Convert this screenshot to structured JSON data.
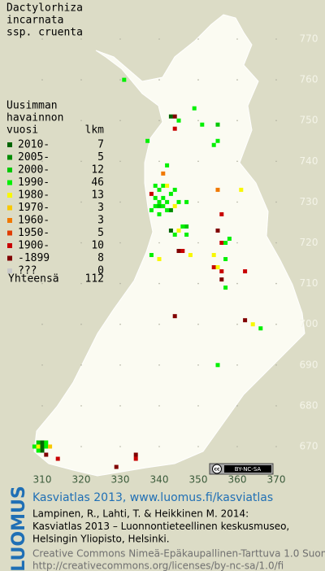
{
  "title": [
    "Dactylorhiza",
    "incarnata",
    "ssp. cruenta"
  ],
  "legend": {
    "heading": [
      "Uusimman",
      "havainnon",
      "vuosi"
    ],
    "count_heading": "lkm",
    "rows": [
      {
        "label": "2010-",
        "color": "#006400",
        "count": 7
      },
      {
        "label": "2005-",
        "color": "#008c00",
        "count": 5
      },
      {
        "label": "2000-",
        "color": "#00c800",
        "count": 12
      },
      {
        "label": "1990-",
        "color": "#00f000",
        "count": 46
      },
      {
        "label": "1980-",
        "color": "#f8f800",
        "count": 13
      },
      {
        "label": "1970-",
        "color": "#f8c800",
        "count": 3
      },
      {
        "label": "1960-",
        "color": "#f07800",
        "count": 3
      },
      {
        "label": "1950-",
        "color": "#e03c00",
        "count": 5
      },
      {
        "label": "1900-",
        "color": "#c80000",
        "count": 10
      },
      {
        "label": "-1899",
        "color": "#800000",
        "count": 8
      },
      {
        "label": "???",
        "color": "#c8c8c8",
        "count": 0
      }
    ],
    "total": {
      "label": "Yhteensä",
      "count": 112
    }
  },
  "map": {
    "xticks": [
      310,
      320,
      330,
      340,
      350,
      360,
      370
    ],
    "yticks": [
      770,
      760,
      750,
      740,
      730,
      720,
      710,
      700,
      690,
      680,
      670
    ],
    "points": [
      [
        331,
        760,
        3
      ],
      [
        343,
        751,
        0
      ],
      [
        344,
        751,
        9
      ],
      [
        345,
        750,
        3
      ],
      [
        344,
        748,
        8
      ],
      [
        349,
        753,
        3
      ],
      [
        351,
        749,
        3
      ],
      [
        355,
        749,
        2
      ],
      [
        354,
        744,
        3
      ],
      [
        355,
        745,
        3
      ],
      [
        337,
        745,
        3
      ],
      [
        342,
        739,
        3
      ],
      [
        341,
        737,
        6
      ],
      [
        338,
        732,
        8
      ],
      [
        339,
        734,
        3
      ],
      [
        340,
        733,
        3
      ],
      [
        341,
        734,
        3
      ],
      [
        342,
        734,
        4
      ],
      [
        339,
        731,
        3
      ],
      [
        340,
        730,
        3
      ],
      [
        341,
        731,
        3
      ],
      [
        342,
        730,
        3
      ],
      [
        343,
        732,
        3
      ],
      [
        344,
        733,
        3
      ],
      [
        339,
        729,
        3
      ],
      [
        340,
        729,
        2
      ],
      [
        341,
        729,
        3
      ],
      [
        343,
        728,
        1
      ],
      [
        345,
        730,
        3
      ],
      [
        338,
        728,
        3
      ],
      [
        340,
        727,
        3
      ],
      [
        342,
        728,
        3
      ],
      [
        344,
        729,
        4
      ],
      [
        347,
        730,
        3
      ],
      [
        355,
        733,
        6
      ],
      [
        361,
        733,
        4
      ],
      [
        356,
        727,
        8
      ],
      [
        347,
        724,
        2
      ],
      [
        346,
        724,
        3
      ],
      [
        343,
        723,
        0
      ],
      [
        344,
        722,
        3
      ],
      [
        345,
        723,
        4
      ],
      [
        347,
        722,
        3
      ],
      [
        355,
        723,
        9
      ],
      [
        356,
        720,
        8
      ],
      [
        357,
        720,
        3
      ],
      [
        358,
        721,
        3
      ],
      [
        345,
        718,
        9
      ],
      [
        346,
        718,
        8
      ],
      [
        348,
        717,
        4
      ],
      [
        338,
        717,
        3
      ],
      [
        340,
        716,
        4
      ],
      [
        354,
        717,
        4
      ],
      [
        354,
        714,
        8
      ],
      [
        355,
        714,
        4
      ],
      [
        356,
        713,
        8
      ],
      [
        357,
        716,
        3
      ],
      [
        356,
        711,
        9
      ],
      [
        362,
        713,
        8
      ],
      [
        357,
        709,
        3
      ],
      [
        344,
        702,
        9
      ],
      [
        362,
        701,
        9
      ],
      [
        364,
        700,
        4
      ],
      [
        366,
        699,
        3
      ],
      [
        355,
        690,
        3
      ],
      [
        334,
        668,
        9
      ],
      [
        334,
        667,
        8
      ],
      [
        329,
        665,
        9
      ],
      [
        309,
        671,
        2
      ],
      [
        310,
        671,
        0
      ],
      [
        311,
        671,
        3
      ],
      [
        308,
        670,
        3
      ],
      [
        309,
        670,
        4
      ],
      [
        310,
        670,
        0
      ],
      [
        311,
        670,
        3
      ],
      [
        310,
        669,
        0
      ],
      [
        309,
        669,
        3
      ],
      [
        312,
        670,
        5
      ],
      [
        311,
        668,
        9
      ],
      [
        314,
        667,
        8
      ]
    ]
  },
  "badge": {
    "icon": "cc",
    "text": "BY-NC-SA"
  },
  "footer": {
    "brand": "LUOMUS",
    "headline": "Kasviatlas 2013, www.luomus.fi/kasviatlas",
    "citation": [
      "Lampinen, R., Lahti, T. & Heikkinen M. 2014:",
      "Kasviatlas 2013 – Luonnontieteellinen keskusmuseo,",
      "Helsingin Yliopisto, Helsinki."
    ],
    "license": [
      "Creative Commons Nimeä-Epäkaupallinen-Tarttuva 1.0 Suomi",
      "http://creativecommons.org/licenses/by-nc-sa/1.0/fi"
    ]
  }
}
